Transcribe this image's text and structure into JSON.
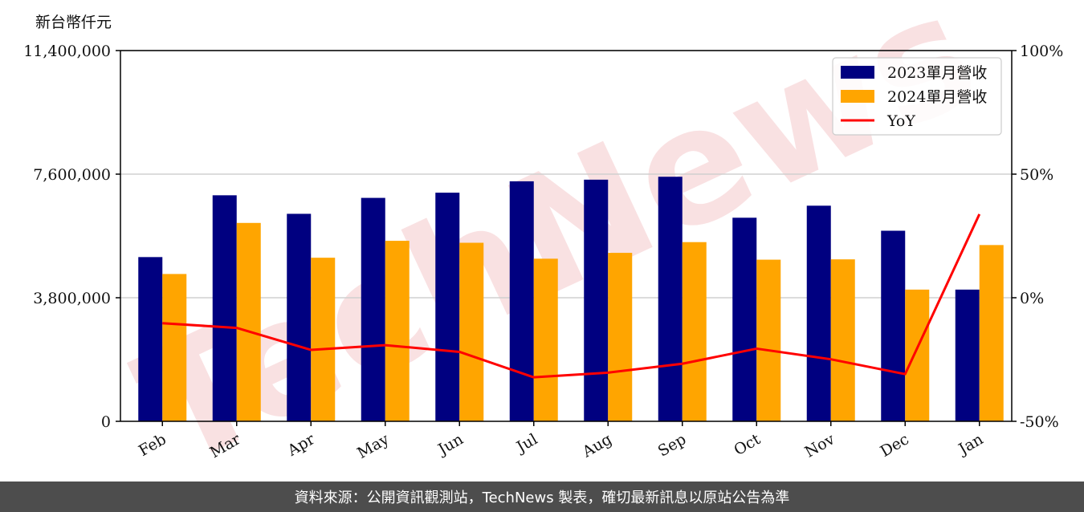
{
  "chart_data": {
    "type": "bar",
    "unit_label": "新台幣仟元",
    "categories": [
      "Feb",
      "Mar",
      "Apr",
      "May",
      "Jun",
      "Jul",
      "Aug",
      "Sep",
      "Oct",
      "Nov",
      "Dec",
      "Jan"
    ],
    "series": [
      {
        "name": "2023單月營收",
        "color": "#000080",
        "axis": "left",
        "values": [
          5050000,
          6950000,
          6380000,
          6870000,
          7030000,
          7380000,
          7430000,
          7520000,
          6260000,
          6630000,
          5860000,
          4050000
        ]
      },
      {
        "name": "2024單月營收",
        "color": "#FFA500",
        "axis": "left",
        "values": [
          4530000,
          6100000,
          5030000,
          5550000,
          5490000,
          5000000,
          5180000,
          5510000,
          4970000,
          4980000,
          4050000,
          5420000
        ]
      },
      {
        "name": "YoY",
        "color": "#FF0000",
        "type": "line",
        "axis": "right",
        "unit": "%",
        "values": [
          -10.3,
          -12.2,
          -21.1,
          -19.2,
          -21.9,
          -32.2,
          -30.3,
          -26.7,
          -20.6,
          -24.9,
          -30.9,
          33.8
        ]
      }
    ],
    "y_left": {
      "min": 0,
      "max": 11400000,
      "ticks": [
        0,
        3800000,
        7600000,
        11400000
      ],
      "tick_labels": [
        "0",
        "3,800,000",
        "7,600,000",
        "11,400,000"
      ]
    },
    "y_right": {
      "min": -50,
      "max": 100,
      "ticks": [
        -50,
        0,
        50,
        100
      ],
      "tick_labels": [
        "-50%",
        "0%",
        "50%",
        "100%"
      ]
    },
    "grid": "horizontal",
    "legend_position": "top-right",
    "watermark": "TechNews",
    "watermark_color": "#f5c9cc"
  },
  "footer": {
    "text": "資料來源：公開資訊觀測站，TechNews 製表，確切最新訊息以原站公告為準"
  }
}
